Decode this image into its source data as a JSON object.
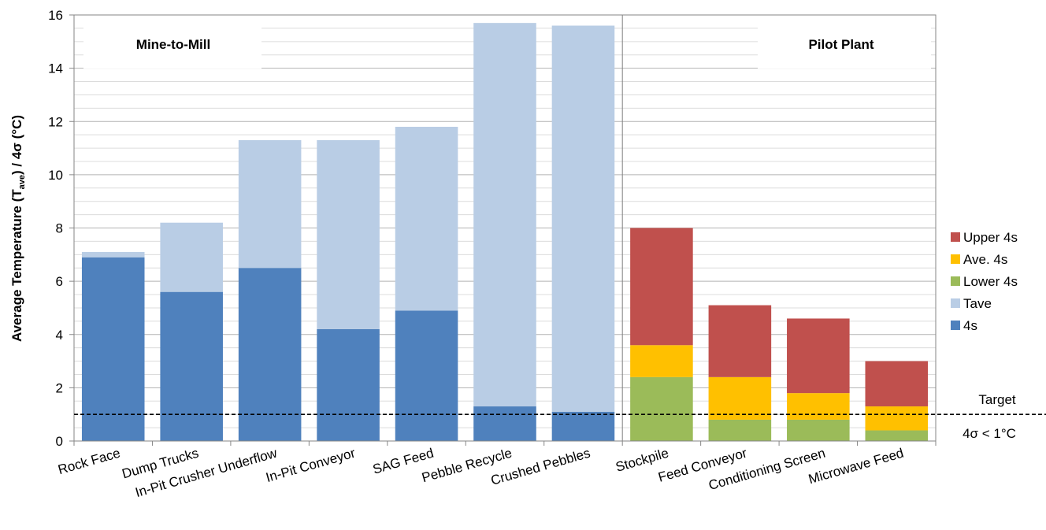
{
  "chart_data": {
    "type": "bar",
    "stacked": true,
    "ylabel_parts": {
      "main": "Average Temperature (T",
      "sub": "ave",
      "tail": ") / 4σ (°C)"
    },
    "ylim": [
      0,
      16
    ],
    "y_ticks": [
      0,
      2,
      4,
      6,
      8,
      10,
      12,
      14,
      16
    ],
    "grid": true,
    "legend_position": "right",
    "categories": [
      "Rock Face",
      "Dump Trucks",
      "In-Pit Crusher Underflow",
      "In-Pit Conveyor",
      "SAG Feed",
      "Pebble Recycle",
      "Crushed Pebbles",
      "Stockpile",
      "Feed Conveyor",
      "Conditioning Screen",
      "Microwave Feed"
    ],
    "series": [
      {
        "name": "4s",
        "color": "#4f81bd",
        "values": [
          6.9,
          5.6,
          6.5,
          4.2,
          4.9,
          1.3,
          1.1,
          0,
          0,
          0,
          0
        ]
      },
      {
        "name": "Tave",
        "color": "#b9cde5",
        "values": [
          0.2,
          2.6,
          4.8,
          7.1,
          6.9,
          14.4,
          14.5,
          0,
          0,
          0,
          0
        ]
      },
      {
        "name": "Lower 4s",
        "color": "#9bbb59",
        "values": [
          0,
          0,
          0,
          0,
          0,
          0,
          0,
          2.4,
          0.8,
          0.8,
          0.4
        ]
      },
      {
        "name": "Ave. 4s",
        "color": "#ffc000",
        "values": [
          0,
          0,
          0,
          0,
          0,
          0,
          0,
          1.2,
          1.6,
          1.0,
          0.9
        ]
      },
      {
        "name": "Upper 4s",
        "color": "#c0504d",
        "values": [
          0,
          0,
          0,
          0,
          0,
          0,
          0,
          4.4,
          2.7,
          2.8,
          1.7
        ]
      }
    ],
    "legend_order": [
      "Upper 4s",
      "Ave. 4s",
      "Lower 4s",
      "Tave",
      "4s"
    ],
    "target_line": {
      "value": 1,
      "label": "Target",
      "sublabel": "4σ < 1°C"
    },
    "region_labels": [
      "Mine-to-Mill",
      "Pilot Plant"
    ]
  }
}
